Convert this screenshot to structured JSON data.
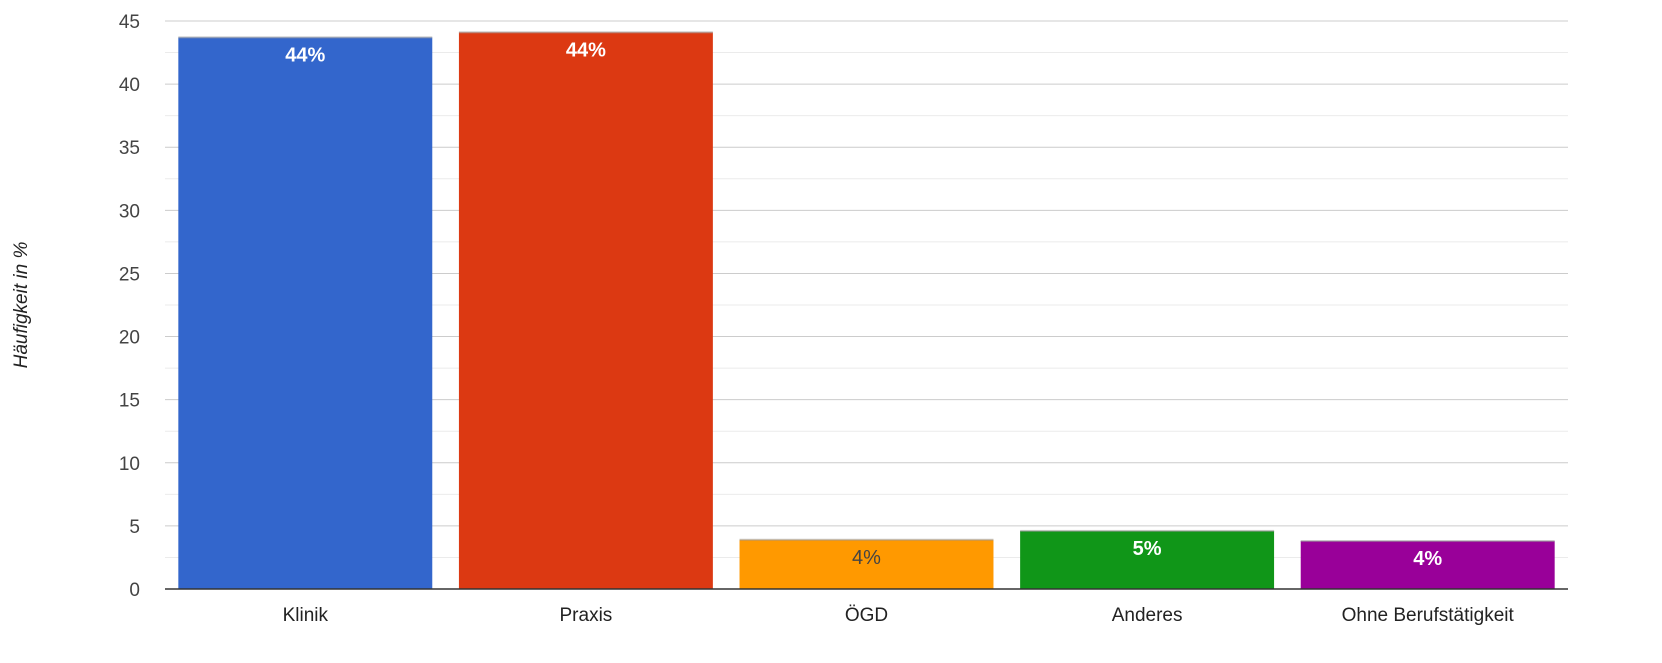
{
  "chart_data": {
    "type": "bar",
    "title": "",
    "xlabel": "",
    "ylabel": "Häufigkeit in %",
    "ylim": [
      0,
      45
    ],
    "yticks": [
      0,
      5,
      10,
      15,
      20,
      25,
      30,
      35,
      40,
      45
    ],
    "minor_gridlines": true,
    "grid": true,
    "legend": "none",
    "categories": [
      "Klinik",
      "Praxis",
      "ÖGD",
      "Anderes",
      "Ohne Berufstätigkeit"
    ],
    "values": [
      43.7,
      44.1,
      3.9,
      4.6,
      3.8
    ],
    "data_labels": [
      "44%",
      "44%",
      "4%",
      "5%",
      "4%"
    ],
    "colors": [
      "#3366cc",
      "#dc3912",
      "#ff9900",
      "#109618",
      "#990099"
    ],
    "label_colors": [
      "#ffffff",
      "#ffffff",
      "#444444",
      "#ffffff",
      "#ffffff"
    ]
  }
}
